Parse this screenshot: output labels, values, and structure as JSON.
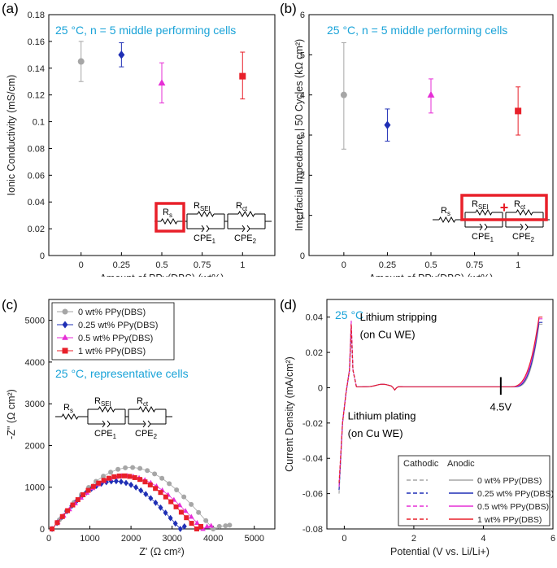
{
  "colors": {
    "gray": "#a6a6a6",
    "blue": "#1f2fb5",
    "magenta": "#e62ed6",
    "red": "#e8202a",
    "cyan": "#1aa3d8",
    "box": "#e8202a"
  },
  "chart_data": [
    {
      "panel": "(a)",
      "type": "scatter",
      "annotation": "25 °C, n = 5 middle performing cells",
      "xlabel": "Amount of PPy(DBS) (wt%)",
      "ylabel": "Ionic Conductivity (mS/cm)",
      "xlim": [
        -0.2,
        1.2
      ],
      "ylim": [
        0,
        0.18
      ],
      "xticks": [
        0,
        0.25,
        0.5,
        0.75,
        1
      ],
      "xtick_labels": [
        "0",
        "0.25",
        "0.5",
        "0.75",
        "1"
      ],
      "yticks": [
        0,
        0.02,
        0.04,
        0.06,
        0.08,
        0.1,
        0.12,
        0.14,
        0.16,
        0.18
      ],
      "ytick_labels": [
        "0",
        "0.02",
        "0.04",
        "0.06",
        "0.08",
        "0.1",
        "0.12",
        "0.14",
        "0.16",
        "0.18"
      ],
      "points": [
        {
          "x": 0,
          "y": 0.145,
          "lo": 0.13,
          "hi": 0.16,
          "color": "gray",
          "marker": "circle"
        },
        {
          "x": 0.25,
          "y": 0.15,
          "lo": 0.141,
          "hi": 0.159,
          "color": "blue",
          "marker": "diamond"
        },
        {
          "x": 0.5,
          "y": 0.129,
          "lo": 0.114,
          "hi": 0.144,
          "color": "magenta",
          "marker": "triangle"
        },
        {
          "x": 1,
          "y": 0.134,
          "lo": 0.117,
          "hi": 0.152,
          "color": "red",
          "marker": "square"
        }
      ],
      "circuit": {
        "r1": "R",
        "r1_sub": "s",
        "r2": "R",
        "r2_sub": "SEI",
        "r3": "R",
        "r3_sub": "ct",
        "c1": "CPE",
        "c1_sub": "1",
        "c2": "CPE",
        "c2_sub": "2"
      }
    },
    {
      "panel": "(b)",
      "type": "scatter",
      "annotation": "25 °C, n = 5 middle performing cells",
      "xlabel": "Amount of PPy(DBS) (wt%)",
      "ylabel": "Interfacial Impedance | 50 Cycles (kΩ cm²)",
      "xlim": [
        -0.2,
        1.2
      ],
      "ylim": [
        0,
        6
      ],
      "xticks": [
        0,
        0.25,
        0.5,
        0.75,
        1
      ],
      "xtick_labels": [
        "0",
        "0.25",
        "0.5",
        "0.75",
        "1"
      ],
      "yticks": [
        0,
        1,
        2,
        3,
        4,
        5,
        6
      ],
      "ytick_labels": [
        "0",
        "1",
        "2",
        "3",
        "4",
        "5",
        "6"
      ],
      "points": [
        {
          "x": 0,
          "y": 4.0,
          "lo": 2.65,
          "hi": 5.3,
          "color": "gray",
          "marker": "circle"
        },
        {
          "x": 0.25,
          "y": 3.25,
          "lo": 2.85,
          "hi": 3.65,
          "color": "blue",
          "marker": "diamond"
        },
        {
          "x": 0.5,
          "y": 4.0,
          "lo": 3.55,
          "hi": 4.4,
          "color": "magenta",
          "marker": "triangle"
        },
        {
          "x": 1,
          "y": 3.6,
          "lo": 3.0,
          "hi": 4.2,
          "color": "red",
          "marker": "square"
        }
      ],
      "circuit": {
        "r1": "R",
        "r1_sub": "s",
        "r2": "R",
        "r2_sub": "SEI",
        "r3": "R",
        "r3_sub": "ct",
        "c1": "CPE",
        "c1_sub": "1",
        "c2": "CPE",
        "c2_sub": "2",
        "plus": "+"
      }
    },
    {
      "panel": "(c)",
      "type": "scatter",
      "annotation": "25 °C, representative cells",
      "xlabel": "Z' (Ω cm²)",
      "ylabel": "-Z\" (Ω cm²)",
      "xlim": [
        0,
        5500
      ],
      "ylim": [
        0,
        5500
      ],
      "xticks": [
        0,
        1000,
        2000,
        3000,
        4000,
        5000
      ],
      "xtick_labels": [
        "0",
        "1000",
        "2000",
        "3000",
        "4000",
        "5000"
      ],
      "yticks": [
        0,
        1000,
        2000,
        3000,
        4000,
        5000
      ],
      "ytick_labels": [
        "0",
        "1000",
        "2000",
        "3000",
        "4000",
        "5000"
      ],
      "legend": [
        "0 wt% PPy(DBS)",
        "0.25 wt% PPy(DBS)",
        "0.5 wt% PPy(DBS)",
        "1 wt% PPy(DBS)"
      ],
      "series": [
        {
          "name": "0 wt% PPy(DBS)",
          "color": "gray",
          "marker": "circle",
          "x0": 80,
          "x1": 4000,
          "peak": 1390,
          "tail": [
            4150,
            4300,
            4400
          ],
          "n": 22
        },
        {
          "name": "0.25 wt% PPy(DBS)",
          "color": "blue",
          "marker": "diamond",
          "x0": 80,
          "x1": 3200,
          "peak": 1080,
          "tail": [
            3300
          ],
          "n": 26
        },
        {
          "name": "0.5 wt% PPy(DBS)",
          "color": "magenta",
          "marker": "triangle",
          "x0": 80,
          "x1": 3750,
          "peak": 1200,
          "tail": [
            3850,
            3950
          ],
          "n": 26
        },
        {
          "name": "1 wt% PPy(DBS)",
          "color": "red",
          "marker": "square",
          "x0": 80,
          "x1": 3600,
          "peak": 1200,
          "tail": [
            3700
          ],
          "n": 28
        }
      ],
      "circuit": {
        "r1": "R",
        "r1_sub": "s",
        "r2": "R",
        "r2_sub": "SEI",
        "r3": "R",
        "r3_sub": "ct",
        "c1": "CPE",
        "c1_sub": "1",
        "c2": "CPE",
        "c2_sub": "2"
      }
    },
    {
      "panel": "(d)",
      "type": "line",
      "annotation": "25 °C",
      "xlabel": "Potential (V vs. Li/Li+)",
      "ylabel": "Current Density (mA/cm²)",
      "xlim": [
        -0.5,
        6
      ],
      "ylim": [
        -0.08,
        0.05
      ],
      "xticks": [
        0,
        2,
        4,
        6
      ],
      "xtick_labels": [
        "0",
        "2",
        "4",
        "6"
      ],
      "yticks": [
        -0.08,
        -0.06,
        -0.04,
        -0.02,
        0,
        0.02,
        0.04
      ],
      "ytick_labels": [
        "-0.08",
        "-0.06",
        "-0.04",
        "-0.02",
        "0",
        "0.02",
        "0.04"
      ],
      "texts": {
        "stripping_1": "Lithium stripping",
        "stripping_2": "(on Cu WE)",
        "plating_1": "Lithium plating",
        "plating_2": "(on Cu WE)",
        "marker_v": "4.5V"
      },
      "marker_x": 4.5,
      "legend_header": {
        "cathodic": "Cathodic",
        "anodic": "Anodic"
      },
      "legend": [
        "0 wt% PPy(DBS)",
        "0.25 wt% PPy(DBS)",
        "0.5 wt% PPy(DBS)",
        "1 wt% PPy(DBS)"
      ],
      "series": [
        {
          "name": "0 wt% PPy(DBS)",
          "color": "gray",
          "onset": 4.9,
          "end": 0.036,
          "strip": 0.033
        },
        {
          "name": "0.25 wt% PPy(DBS)",
          "color": "blue",
          "onset": 4.85,
          "end": 0.037,
          "strip": 0.034
        },
        {
          "name": "0.5 wt% PPy(DBS)",
          "color": "magenta",
          "onset": 4.8,
          "end": 0.039,
          "strip": 0.038
        },
        {
          "name": "1 wt% PPy(DBS)",
          "color": "red",
          "onset": 4.75,
          "end": 0.04,
          "strip": 0.036
        }
      ]
    }
  ]
}
